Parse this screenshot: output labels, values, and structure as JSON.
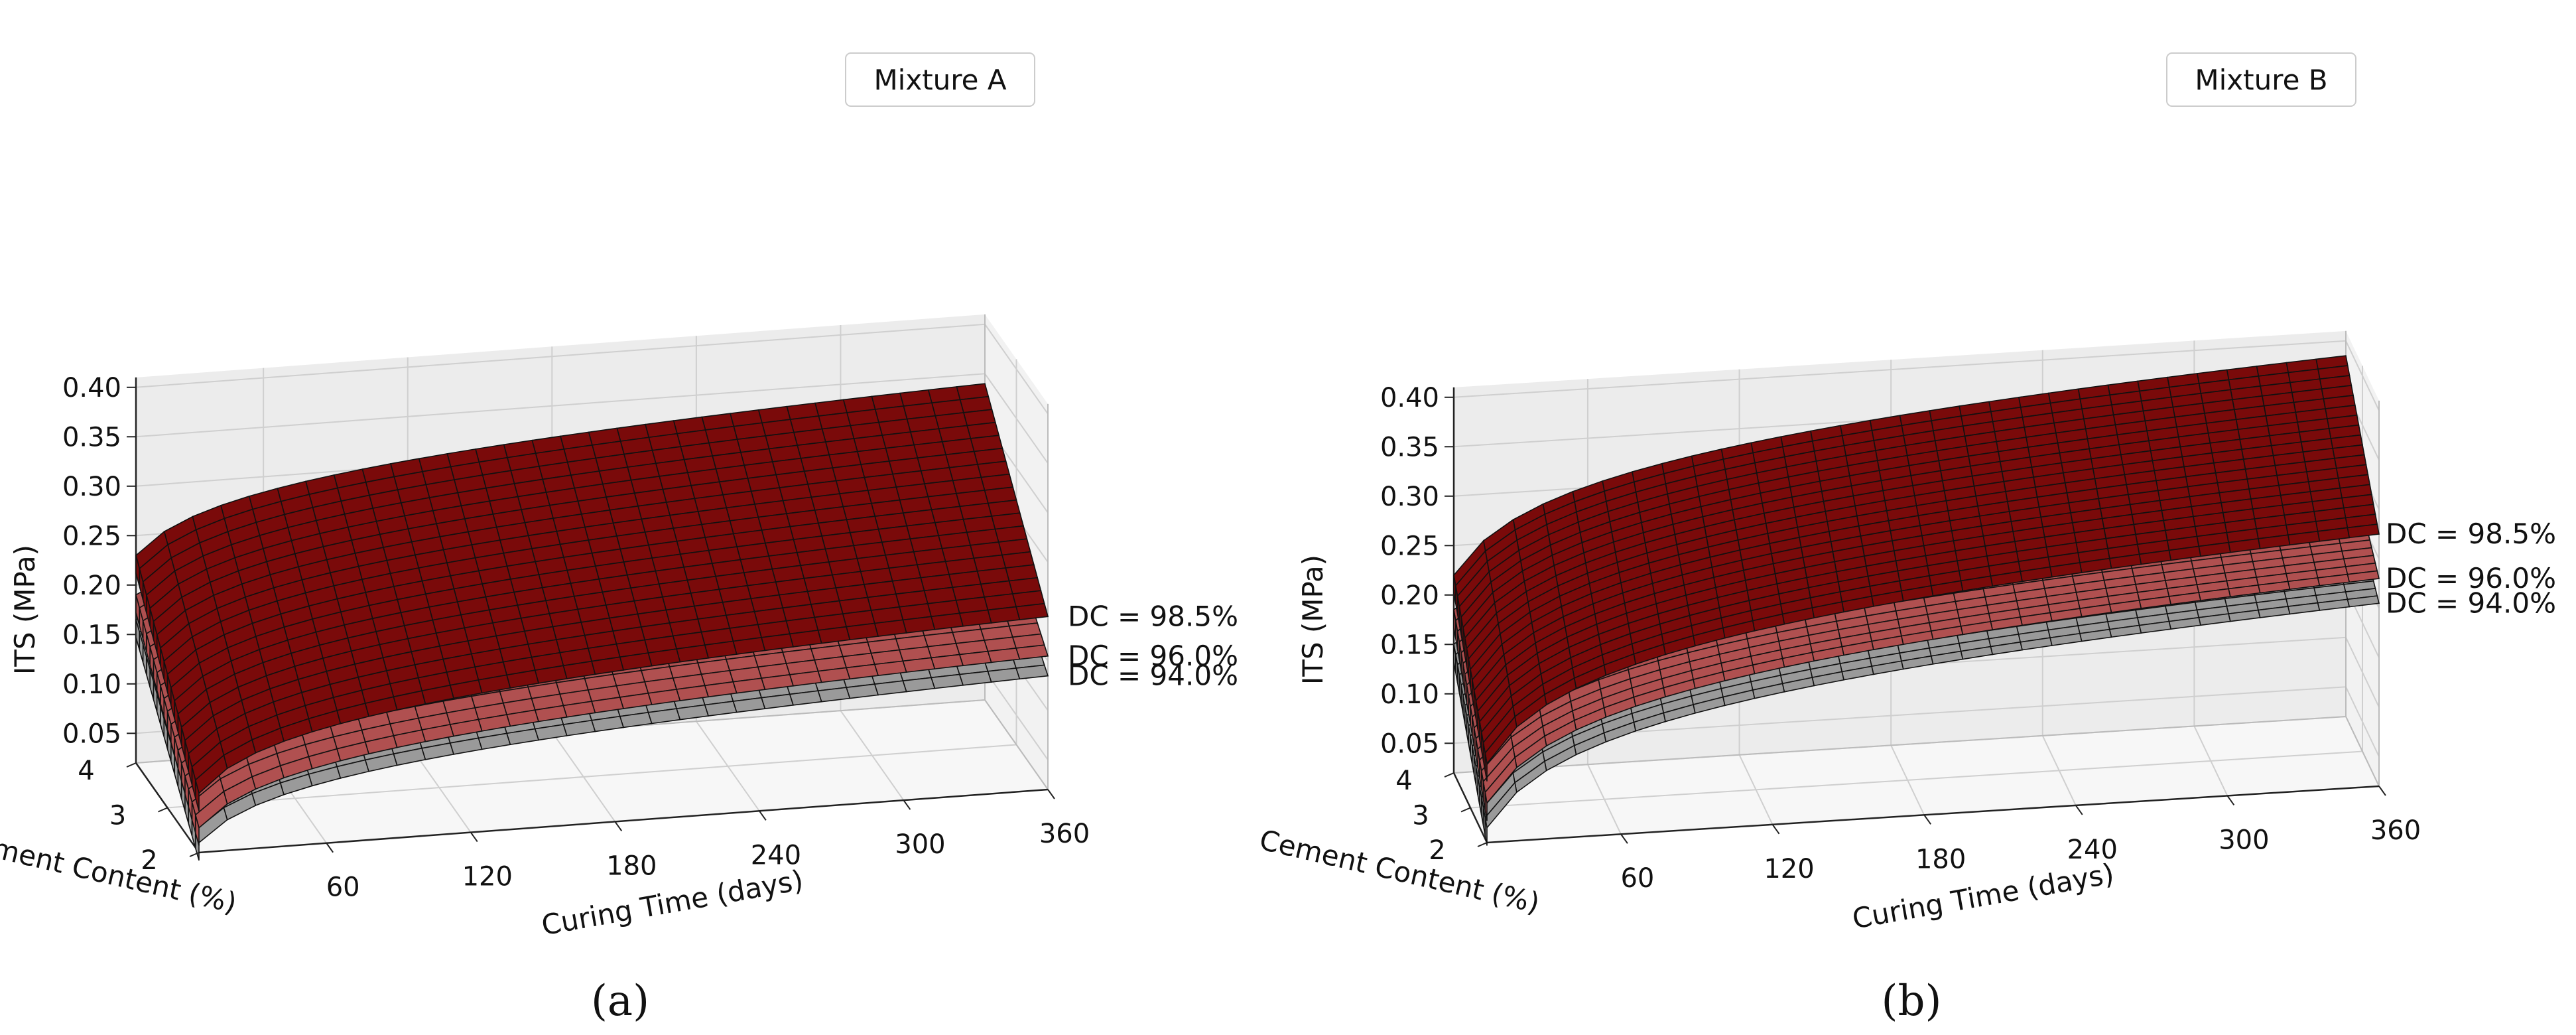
{
  "chart_data": [
    {
      "panel": "a",
      "type": "surface",
      "caption": "(a)",
      "legend": "Mixture A",
      "xlabel": "Curing Time (days)",
      "ylabel": "Cement Content (%)",
      "zlabel": "ITS (MPa)",
      "x_ticks": [
        "60",
        "120",
        "180",
        "240",
        "300",
        "360"
      ],
      "y_ticks": [
        "2",
        "3",
        "4"
      ],
      "z_ticks": [
        "0.05",
        "0.10",
        "0.15",
        "0.20",
        "0.25",
        "0.30",
        "0.35",
        "0.40"
      ],
      "xlim": [
        7,
        360
      ],
      "ylim": [
        2,
        4
      ],
      "zlim": [
        0.02,
        0.41
      ],
      "series": [
        {
          "name": "DC = 94.0%",
          "label": "DC = 94.0%",
          "color": "#9a9a9a",
          "corners": {
            "t7_c2": 0.03,
            "t360_c2": 0.135,
            "t7_c4": 0.165,
            "t360_c4": 0.24
          }
        },
        {
          "name": "DC = 96.0%",
          "label": "DC = 96.0%",
          "color": "#b05050",
          "corners": {
            "t7_c2": 0.045,
            "t360_c2": 0.155,
            "t7_c4": 0.19,
            "t360_c4": 0.265
          }
        },
        {
          "name": "DC = 98.5%",
          "label": "DC = 98.5%",
          "color": "#7a0a0a",
          "corners": {
            "t7_c2": 0.08,
            "t360_c2": 0.195,
            "t7_c4": 0.23,
            "t360_c4": 0.34
          }
        }
      ]
    },
    {
      "panel": "b",
      "type": "surface",
      "caption": "(b)",
      "legend": "Mixture B",
      "xlabel": "Curing Time (days)",
      "ylabel": "Cement Content (%)",
      "zlabel": "ITS (MPa)",
      "x_ticks": [
        "60",
        "120",
        "180",
        "240",
        "300",
        "360"
      ],
      "y_ticks": [
        "2",
        "3",
        "4"
      ],
      "z_ticks": [
        "0.05",
        "0.10",
        "0.15",
        "0.20",
        "0.25",
        "0.30",
        "0.35",
        "0.40"
      ],
      "xlim": [
        7,
        360
      ],
      "ylim": [
        2,
        4
      ],
      "zlim": [
        0.02,
        0.41
      ],
      "series": [
        {
          "name": "DC = 94.0%",
          "label": "DC = 94.0%",
          "color": "#9a9a9a",
          "corners": {
            "t7_c2": 0.035,
            "t360_c2": 0.205,
            "t7_c4": 0.15,
            "t360_c4": 0.27
          }
        },
        {
          "name": "DC = 96.0%",
          "label": "DC = 96.0%",
          "color": "#b05050",
          "corners": {
            "t7_c2": 0.06,
            "t360_c2": 0.23,
            "t7_c4": 0.185,
            "t360_c4": 0.3
          }
        },
        {
          "name": "DC = 98.5%",
          "label": "DC = 98.5%",
          "color": "#7a0a0a",
          "corners": {
            "t7_c2": 0.1,
            "t360_c2": 0.275,
            "t7_c4": 0.22,
            "t360_c4": 0.385
          }
        }
      ]
    }
  ]
}
